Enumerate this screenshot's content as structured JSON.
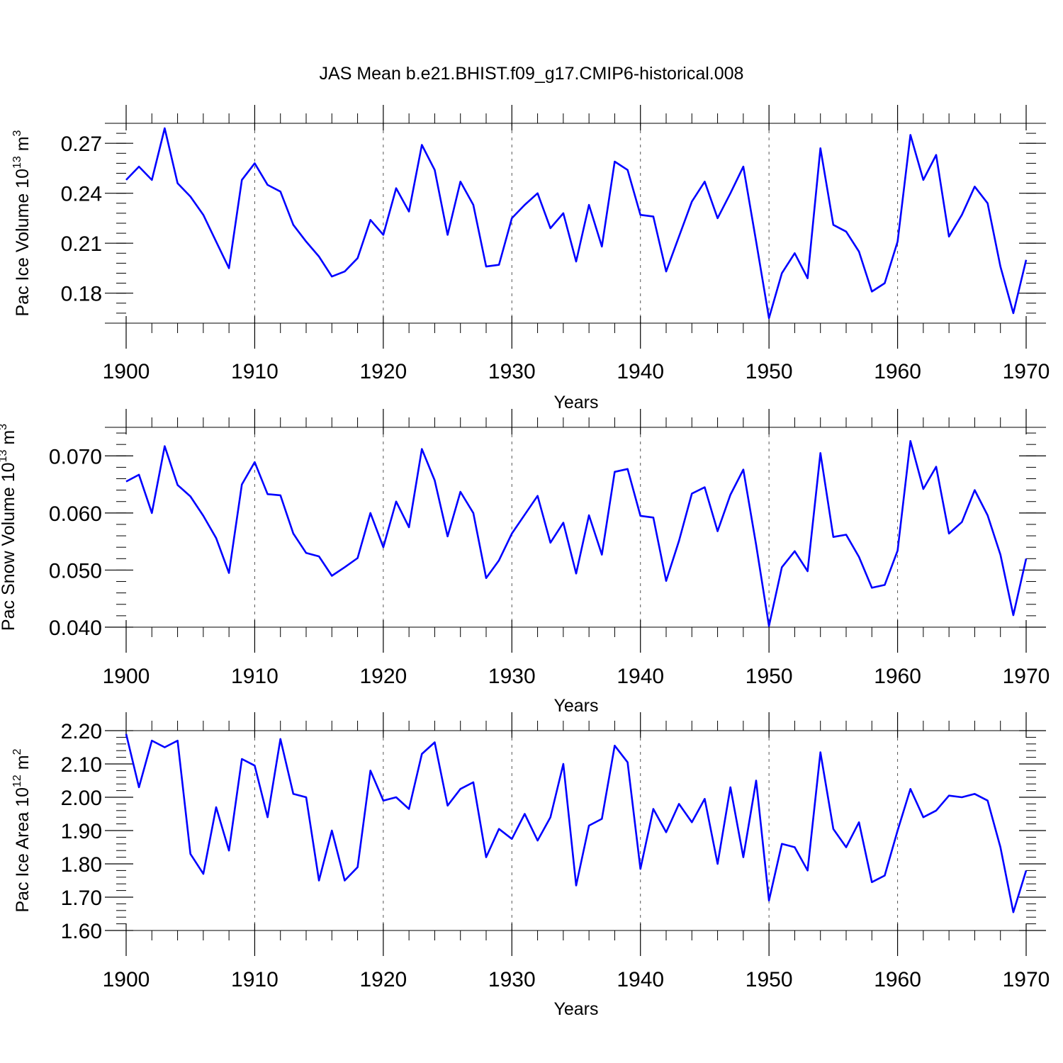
{
  "chart_data": [
    {
      "type": "line",
      "title": "JAS Mean b.e21.BHIST.f09_g17.CMIP6-historical.008",
      "xlabel": "Years",
      "ylabel": "Pac Ice Volume 10",
      "ylabel_exponent": "13",
      "ylabel_unit": " m",
      "ylabel_unit_exponent": "3",
      "xlim": [
        1900,
        1970
      ],
      "ylim": [
        0.162,
        0.282
      ],
      "xticks": [
        1900,
        1910,
        1920,
        1930,
        1940,
        1950,
        1960,
        1970
      ],
      "xtick_labels": [
        "1900",
        "1910",
        "1920",
        "1930",
        "1940",
        "1950",
        "1960",
        "1970"
      ],
      "yticks": [
        0.18,
        0.21,
        0.24,
        0.27
      ],
      "ytick_labels": [
        "0.18",
        "0.21",
        "0.24",
        "0.27"
      ],
      "grid": "vertical dashed at major x ticks",
      "line_color": "#0000ff",
      "x": [
        1900,
        1901,
        1902,
        1903,
        1904,
        1905,
        1906,
        1907,
        1908,
        1909,
        1910,
        1911,
        1912,
        1913,
        1914,
        1915,
        1916,
        1917,
        1918,
        1919,
        1920,
        1921,
        1922,
        1923,
        1924,
        1925,
        1926,
        1927,
        1928,
        1929,
        1930,
        1931,
        1932,
        1933,
        1934,
        1935,
        1936,
        1937,
        1938,
        1939,
        1940,
        1941,
        1942,
        1943,
        1944,
        1945,
        1946,
        1947,
        1948,
        1949,
        1950,
        1951,
        1952,
        1953,
        1954,
        1955,
        1956,
        1957,
        1958,
        1959,
        1960,
        1961,
        1962,
        1963,
        1964,
        1965,
        1966,
        1967,
        1968,
        1969,
        1970
      ],
      "series": [
        {
          "name": "Pac Ice Volume",
          "values": [
            0.248,
            0.256,
            0.248,
            0.279,
            0.246,
            0.238,
            0.227,
            0.211,
            0.195,
            0.248,
            0.258,
            0.245,
            0.241,
            0.221,
            0.211,
            0.202,
            0.19,
            0.193,
            0.201,
            0.224,
            0.215,
            0.243,
            0.229,
            0.269,
            0.254,
            0.215,
            0.247,
            0.233,
            0.196,
            0.197,
            0.225,
            0.233,
            0.24,
            0.219,
            0.228,
            0.199,
            0.233,
            0.208,
            0.259,
            0.254,
            0.227,
            0.226,
            0.193,
            0.214,
            0.235,
            0.247,
            0.225,
            0.24,
            0.256,
            0.211,
            0.165,
            0.192,
            0.204,
            0.189,
            0.267,
            0.221,
            0.217,
            0.205,
            0.181,
            0.186,
            0.211,
            0.275,
            0.248,
            0.263,
            0.214,
            0.227,
            0.244,
            0.234,
            0.196,
            0.168,
            0.2
          ]
        }
      ]
    },
    {
      "type": "line",
      "xlabel": "Years",
      "ylabel": "Pac Snow Volume 10",
      "ylabel_exponent": "13",
      "ylabel_unit": " m",
      "ylabel_unit_exponent": "3",
      "xlim": [
        1900,
        1970
      ],
      "ylim": [
        0.04,
        0.075
      ],
      "xticks": [
        1900,
        1910,
        1920,
        1930,
        1940,
        1950,
        1960,
        1970
      ],
      "xtick_labels": [
        "1900",
        "1910",
        "1920",
        "1930",
        "1940",
        "1950",
        "1960",
        "1970"
      ],
      "yticks": [
        0.04,
        0.05,
        0.06,
        0.07
      ],
      "ytick_labels": [
        "0.040",
        "0.050",
        "0.060",
        "0.070"
      ],
      "grid": "vertical dashed at major x ticks",
      "line_color": "#0000ff",
      "x": [
        1900,
        1901,
        1902,
        1903,
        1904,
        1905,
        1906,
        1907,
        1908,
        1909,
        1910,
        1911,
        1912,
        1913,
        1914,
        1915,
        1916,
        1917,
        1918,
        1919,
        1920,
        1921,
        1922,
        1923,
        1924,
        1925,
        1926,
        1927,
        1928,
        1929,
        1930,
        1931,
        1932,
        1933,
        1934,
        1935,
        1936,
        1937,
        1938,
        1939,
        1940,
        1941,
        1942,
        1943,
        1944,
        1945,
        1946,
        1947,
        1948,
        1949,
        1950,
        1951,
        1952,
        1953,
        1954,
        1955,
        1956,
        1957,
        1958,
        1959,
        1960,
        1961,
        1962,
        1963,
        1964,
        1965,
        1966,
        1967,
        1968,
        1969,
        1970
      ],
      "series": [
        {
          "name": "Pac Snow Volume",
          "values": [
            0.0655,
            0.0667,
            0.06,
            0.0717,
            0.0649,
            0.0629,
            0.0595,
            0.0556,
            0.0495,
            0.065,
            0.0689,
            0.0633,
            0.0631,
            0.0564,
            0.053,
            0.0524,
            0.049,
            0.0505,
            0.0521,
            0.06,
            0.054,
            0.062,
            0.0575,
            0.0712,
            0.0657,
            0.0559,
            0.0637,
            0.06,
            0.0486,
            0.0517,
            0.0564,
            0.0597,
            0.063,
            0.0548,
            0.0583,
            0.0494,
            0.0596,
            0.0527,
            0.0672,
            0.0677,
            0.0595,
            0.0592,
            0.0481,
            0.0551,
            0.0634,
            0.0645,
            0.0568,
            0.0632,
            0.0676,
            0.0544,
            0.0402,
            0.0505,
            0.0533,
            0.0498,
            0.0705,
            0.0558,
            0.0562,
            0.0523,
            0.0469,
            0.0474,
            0.0534,
            0.0726,
            0.0642,
            0.0681,
            0.0564,
            0.0584,
            0.064,
            0.0596,
            0.0527,
            0.0421,
            0.052
          ]
        }
      ]
    },
    {
      "type": "line",
      "xlabel": "Years",
      "ylabel": "Pac Ice Area 10",
      "ylabel_exponent": "12",
      "ylabel_unit": " m",
      "ylabel_unit_exponent": "2",
      "xlim": [
        1900,
        1970
      ],
      "ylim": [
        1.6,
        2.2
      ],
      "xticks": [
        1900,
        1910,
        1920,
        1930,
        1940,
        1950,
        1960,
        1970
      ],
      "xtick_labels": [
        "1900",
        "1910",
        "1920",
        "1930",
        "1940",
        "1950",
        "1960",
        "1970"
      ],
      "yticks": [
        1.6,
        1.7,
        1.8,
        1.9,
        2.0,
        2.1,
        2.2
      ],
      "ytick_labels": [
        "1.60",
        "1.70",
        "1.80",
        "1.90",
        "2.00",
        "2.10",
        "2.20"
      ],
      "grid": "vertical dashed at major x ticks",
      "line_color": "#0000ff",
      "x": [
        1900,
        1901,
        1902,
        1903,
        1904,
        1905,
        1906,
        1907,
        1908,
        1909,
        1910,
        1911,
        1912,
        1913,
        1914,
        1915,
        1916,
        1917,
        1918,
        1919,
        1920,
        1921,
        1922,
        1923,
        1924,
        1925,
        1926,
        1927,
        1928,
        1929,
        1930,
        1931,
        1932,
        1933,
        1934,
        1935,
        1936,
        1937,
        1938,
        1939,
        1940,
        1941,
        1942,
        1943,
        1944,
        1945,
        1946,
        1947,
        1948,
        1949,
        1950,
        1951,
        1952,
        1953,
        1954,
        1955,
        1956,
        1957,
        1958,
        1959,
        1960,
        1961,
        1962,
        1963,
        1964,
        1965,
        1966,
        1967,
        1968,
        1969,
        1970
      ],
      "series": [
        {
          "name": "Pac Ice Area",
          "values": [
            2.19,
            2.03,
            2.17,
            2.15,
            2.17,
            1.83,
            1.77,
            1.97,
            1.84,
            2.115,
            2.095,
            1.94,
            2.175,
            2.01,
            2.0,
            1.75,
            1.9,
            1.75,
            1.79,
            2.08,
            1.99,
            2.0,
            1.965,
            2.13,
            2.165,
            1.975,
            2.025,
            2.045,
            1.82,
            1.905,
            1.875,
            1.95,
            1.87,
            1.94,
            2.1,
            1.735,
            1.915,
            1.935,
            2.155,
            2.105,
            1.785,
            1.965,
            1.895,
            1.98,
            1.925,
            1.995,
            1.8,
            2.03,
            1.82,
            2.05,
            1.69,
            1.86,
            1.85,
            1.78,
            2.135,
            1.905,
            1.85,
            1.925,
            1.745,
            1.765,
            1.9,
            2.025,
            1.94,
            1.96,
            2.005,
            2.0,
            2.01,
            1.99,
            1.85,
            1.655,
            1.78
          ]
        }
      ]
    }
  ]
}
